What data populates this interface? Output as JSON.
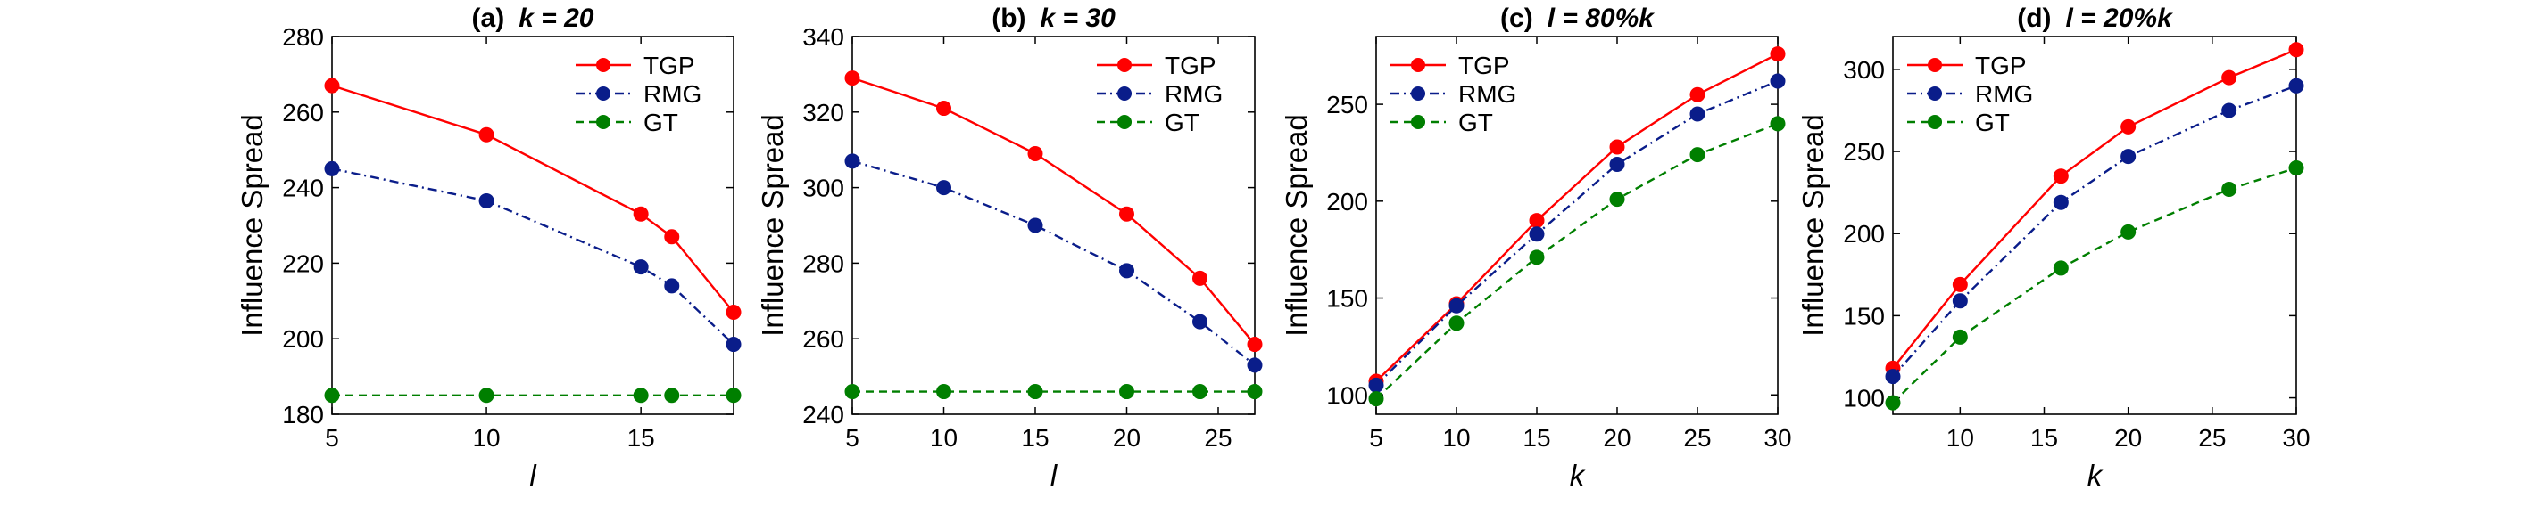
{
  "colors": {
    "TGP": "#ff0000",
    "RMG": "#0a1d8a",
    "GT": "#007f00",
    "axis": "#000000"
  },
  "chart_data": [
    {
      "type": "line",
      "panel": "(a)",
      "title_prefix": "(a)",
      "title_expr": "k = 20",
      "xlabel": "l",
      "ylabel": "Influence Spread",
      "xlim": [
        5,
        18
      ],
      "ylim": [
        180,
        280
      ],
      "xticks": [
        5,
        10,
        15
      ],
      "yticks": [
        180,
        200,
        220,
        240,
        260,
        280
      ],
      "x": [
        5,
        10,
        15,
        16,
        18
      ],
      "legend_position": "top-right",
      "series": [
        {
          "name": "TGP",
          "style": "solid",
          "values": [
            267,
            254,
            233,
            227,
            207
          ]
        },
        {
          "name": "RMG",
          "style": "dashdot",
          "values": [
            245,
            236.5,
            219,
            214,
            198.5
          ]
        },
        {
          "name": "GT",
          "style": "dashed",
          "values": [
            185,
            185,
            185,
            185,
            185
          ]
        }
      ]
    },
    {
      "type": "line",
      "panel": "(b)",
      "title_prefix": "(b)",
      "title_expr": "k = 30",
      "xlabel": "l",
      "ylabel": "Influence Spread",
      "xlim": [
        5,
        27
      ],
      "ylim": [
        240,
        340
      ],
      "xticks": [
        5,
        10,
        15,
        20,
        25
      ],
      "yticks": [
        240,
        260,
        280,
        300,
        320,
        340
      ],
      "x": [
        5,
        10,
        15,
        20,
        24,
        27
      ],
      "legend_position": "top-right",
      "series": [
        {
          "name": "TGP",
          "style": "solid",
          "values": [
            329,
            321,
            309,
            293,
            276,
            258.5
          ]
        },
        {
          "name": "RMG",
          "style": "dashdot",
          "values": [
            307,
            300,
            290,
            278,
            264.5,
            253
          ]
        },
        {
          "name": "GT",
          "style": "dashed",
          "values": [
            246,
            246,
            246,
            246,
            246,
            246
          ]
        }
      ]
    },
    {
      "type": "line",
      "panel": "(c)",
      "title_prefix": "(c)",
      "title_expr": "l = 80%k",
      "xlabel": "k",
      "ylabel": "Influence Spread",
      "xlim": [
        5,
        30
      ],
      "ylim": [
        90,
        285
      ],
      "xticks": [
        5,
        10,
        15,
        20,
        25,
        30
      ],
      "yticks": [
        100,
        150,
        200,
        250
      ],
      "x": [
        5,
        10,
        15,
        20,
        25,
        30
      ],
      "legend_position": "top-left",
      "series": [
        {
          "name": "TGP",
          "style": "solid",
          "values": [
            107,
            147,
            190,
            228,
            255,
            276
          ]
        },
        {
          "name": "RMG",
          "style": "dashdot",
          "values": [
            105,
            146,
            183,
            219,
            245,
            262
          ]
        },
        {
          "name": "GT",
          "style": "dashed",
          "values": [
            98,
            137,
            171,
            201,
            224,
            240
          ]
        }
      ]
    },
    {
      "type": "line",
      "panel": "(d)",
      "title_prefix": "(d)",
      "title_expr": "l = 20%k",
      "xlabel": "k",
      "ylabel": "Influence Spread",
      "xlim": [
        6,
        30
      ],
      "ylim": [
        90,
        320
      ],
      "xticks": [
        10,
        15,
        20,
        25,
        30
      ],
      "yticks": [
        100,
        150,
        200,
        250,
        300
      ],
      "x": [
        6,
        10,
        16,
        20,
        26,
        30
      ],
      "legend_position": "top-left",
      "series": [
        {
          "name": "TGP",
          "style": "solid",
          "values": [
            118,
            169,
            235,
            265,
            295,
            312
          ]
        },
        {
          "name": "RMG",
          "style": "dashdot",
          "values": [
            113,
            159,
            219,
            247,
            275,
            290
          ]
        },
        {
          "name": "GT",
          "style": "dashed",
          "values": [
            97,
            137,
            179,
            201,
            227,
            240
          ]
        }
      ]
    }
  ]
}
